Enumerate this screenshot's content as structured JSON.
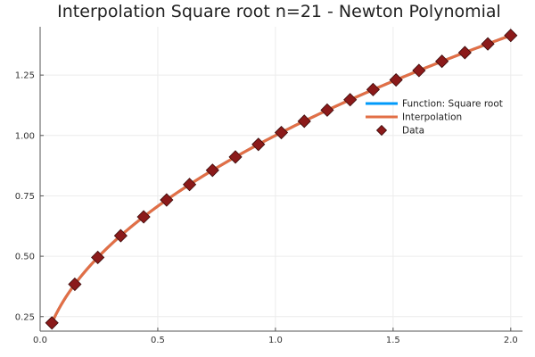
{
  "chart_data": {
    "type": "line",
    "title": "Interpolation Square root n=21 - Newton Polynomial",
    "xlabel": "",
    "ylabel": "",
    "xlim": [
      0.0,
      2.05
    ],
    "ylim": [
      0.19,
      1.45
    ],
    "xticks": [
      0.0,
      0.5,
      1.0,
      1.5,
      2.0
    ],
    "xtick_labels": [
      "0.0",
      "0.5",
      "1.0",
      "1.5",
      "2.0"
    ],
    "yticks": [
      0.25,
      0.5,
      0.75,
      1.0,
      1.25
    ],
    "ytick_labels": [
      "0.25",
      "0.50",
      "0.75",
      "1.00",
      "1.25"
    ],
    "grid": true,
    "legend_position": "right",
    "series": [
      {
        "name": "Function: Square root",
        "kind": "line",
        "color": "#009AFA",
        "function": "sqrt",
        "x_range": [
          0.05,
          2.0
        ]
      },
      {
        "name": "Interpolation",
        "kind": "line",
        "color": "#E26F46",
        "function": "sqrt",
        "x_range": [
          0.05,
          2.0
        ]
      },
      {
        "name": "Data",
        "kind": "scatter",
        "color": "#8B1A1A",
        "marker": "diamond",
        "x": [
          0.05,
          0.1475,
          0.245,
          0.3425,
          0.44,
          0.5375,
          0.635,
          0.7325,
          0.83,
          0.9275,
          1.025,
          1.1225,
          1.22,
          1.3175,
          1.415,
          1.5125,
          1.61,
          1.7075,
          1.805,
          1.9025,
          2.0
        ],
        "y": [
          0.224,
          0.384,
          0.495,
          0.585,
          0.663,
          0.733,
          0.797,
          0.856,
          0.911,
          0.963,
          1.012,
          1.059,
          1.105,
          1.148,
          1.19,
          1.23,
          1.269,
          1.307,
          1.343,
          1.379,
          1.414
        ]
      }
    ]
  }
}
